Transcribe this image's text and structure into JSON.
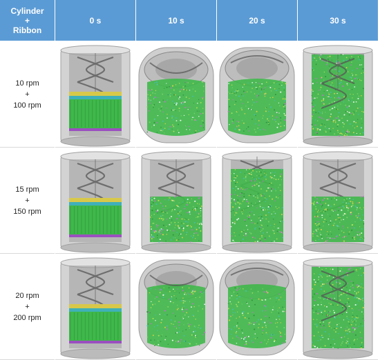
{
  "header": {
    "corner_line1": "Cylinder",
    "corner_line2": "+",
    "corner_line3": "Ribbon",
    "times": [
      "0 s",
      "10 s",
      "20 s",
      "30 s"
    ]
  },
  "rows": [
    {
      "speed1": "10 rpm",
      "plus": "+",
      "speed2": "100 rpm",
      "states": [
        "layered",
        "tilted-right",
        "tilted-left",
        "mixed-full"
      ]
    },
    {
      "speed1": "15 rpm",
      "plus": "+",
      "speed2": "150 rpm",
      "states": [
        "layered",
        "mixed-half",
        "mixed-high",
        "mixed-half"
      ]
    },
    {
      "speed1": "20 rpm",
      "plus": "+",
      "speed2": "200 rpm",
      "states": [
        "layered",
        "tilted-right-low",
        "tilted-left-low",
        "mixed-full"
      ]
    }
  ],
  "colors": {
    "header_bg": "#5b9bd5",
    "particle_green": "#3fb84a",
    "layer_yellow": "#d8c84a",
    "layer_cyan": "#3fb0b8",
    "layer_purple": "#9b4fc0",
    "cylinder_gray": "#c8c8c8"
  }
}
